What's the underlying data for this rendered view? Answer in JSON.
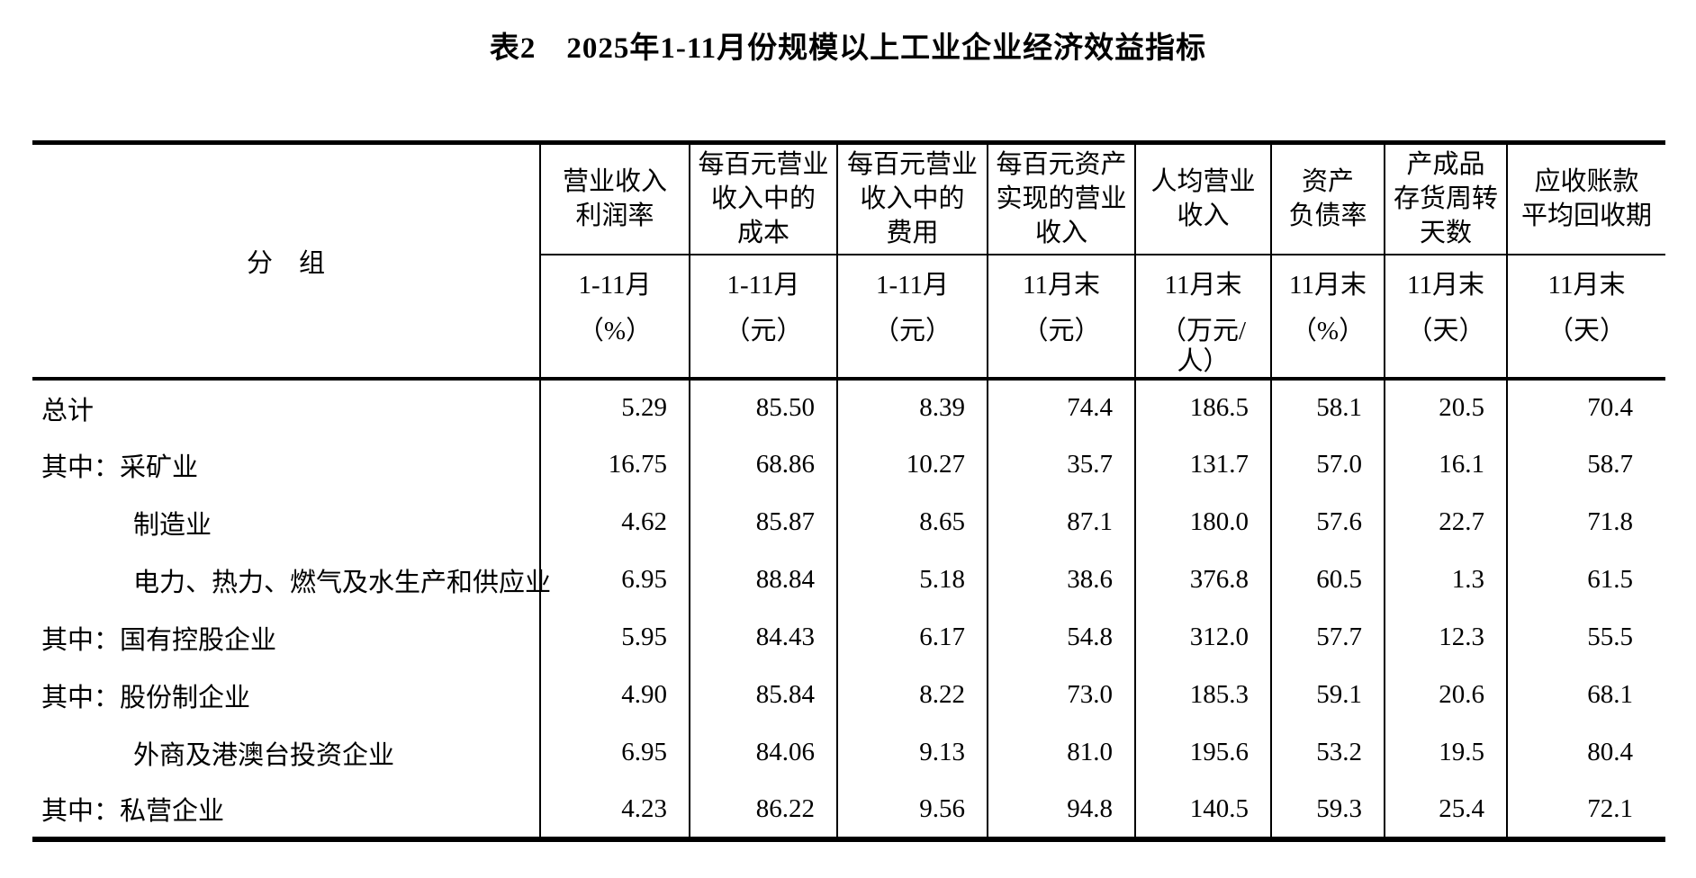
{
  "title": "表2　2025年1-11月份规模以上工业企业经济效益指标",
  "colors": {
    "text": "#000000",
    "background": "#ffffff",
    "border": "#000000"
  },
  "table": {
    "group_header": "分　组",
    "columns": [
      {
        "title": "营业收入\n利润率",
        "period": "1-11月",
        "unit": "（%）"
      },
      {
        "title": "每百元营业\n收入中的\n成本",
        "period": "1-11月",
        "unit": "（元）"
      },
      {
        "title": "每百元营业\n收入中的\n费用",
        "period": "1-11月",
        "unit": "（元）"
      },
      {
        "title": "每百元资产\n实现的营业\n收入",
        "period": "11月末",
        "unit": "（元）"
      },
      {
        "title": "人均营业\n收入",
        "period": "11月末",
        "unit": "（万元/\n人）"
      },
      {
        "title": "资产\n负债率",
        "period": "11月末",
        "unit": "（%）"
      },
      {
        "title": "产成品\n存货周转\n天数",
        "period": "11月末",
        "unit": "（天）"
      },
      {
        "title": "应收账款\n平均回收期",
        "period": "11月末",
        "unit": "（天）"
      }
    ],
    "rows": [
      {
        "label": "总计",
        "indent": 0,
        "values": [
          "5.29",
          "85.50",
          "8.39",
          "74.4",
          "186.5",
          "58.1",
          "20.5",
          "70.4"
        ]
      },
      {
        "label": "其中：采矿业",
        "indent": 0,
        "values": [
          "16.75",
          "68.86",
          "10.27",
          "35.7",
          "131.7",
          "57.0",
          "16.1",
          "58.7"
        ]
      },
      {
        "label": "制造业",
        "indent": 1,
        "values": [
          "4.62",
          "85.87",
          "8.65",
          "87.1",
          "180.0",
          "57.6",
          "22.7",
          "71.8"
        ]
      },
      {
        "label": "电力、热力、燃气及水生产和供应业",
        "indent": 1,
        "values": [
          "6.95",
          "88.84",
          "5.18",
          "38.6",
          "376.8",
          "60.5",
          "1.3",
          "61.5"
        ]
      },
      {
        "label": "其中：国有控股企业",
        "indent": 0,
        "values": [
          "5.95",
          "84.43",
          "6.17",
          "54.8",
          "312.0",
          "57.7",
          "12.3",
          "55.5"
        ]
      },
      {
        "label": "其中：股份制企业",
        "indent": 0,
        "values": [
          "4.90",
          "85.84",
          "8.22",
          "73.0",
          "185.3",
          "59.1",
          "20.6",
          "68.1"
        ]
      },
      {
        "label": "外商及港澳台投资企业",
        "indent": 1,
        "values": [
          "6.95",
          "84.06",
          "9.13",
          "81.0",
          "195.6",
          "53.2",
          "19.5",
          "80.4"
        ]
      },
      {
        "label": "其中：私营企业",
        "indent": 0,
        "values": [
          "4.23",
          "86.22",
          "9.56",
          "94.8",
          "140.5",
          "59.3",
          "25.4",
          "72.1"
        ]
      }
    ]
  }
}
